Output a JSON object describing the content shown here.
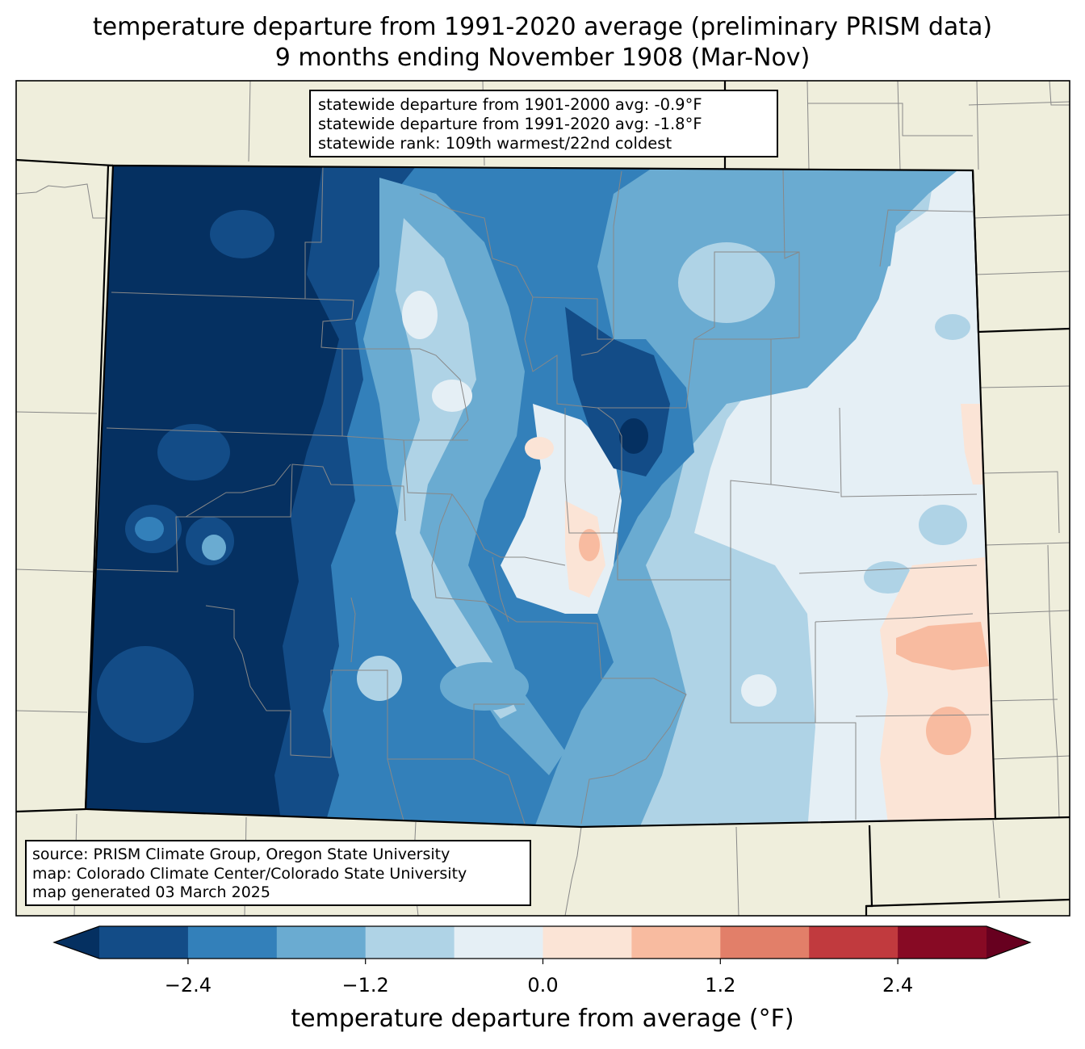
{
  "title": {
    "line1": "temperature departure from 1991-2020 average (preliminary PRISM data)",
    "line2": "9 months ending November 1908 (Mar-Nov)"
  },
  "stats_box": {
    "line1": "statewide departure from 1901-2000 avg: -0.9°F",
    "line2": "statewide departure from 1991-2020 avg: -1.8°F",
    "line3": "statewide rank: 109th warmest/22nd coldest"
  },
  "source_box": {
    "line1": "source: PRISM Climate Group, Oregon State University",
    "line2": "map: Colorado Climate Center/Colorado State University",
    "line3": "map generated 03 March 2025"
  },
  "colorbar": {
    "label": "temperature departure from average (°F)",
    "ticks": [
      "−2.4",
      "−1.2",
      "0.0",
      "1.2",
      "2.4"
    ],
    "tick_values": [
      -2.4,
      -1.2,
      0.0,
      1.2,
      2.4
    ],
    "range": [
      -3.0,
      3.0
    ],
    "extend": "both",
    "colors": [
      "#053061",
      "#134c87",
      "#3380ba",
      "#6aabd1",
      "#afd3e6",
      "#e5eff5",
      "#fbe4d6",
      "#f8bba0",
      "#e27f69",
      "#c13a3e",
      "#870a24",
      "#67001f"
    ]
  },
  "colors": {
    "land_outside": "#efeedc",
    "state_border": "#000000",
    "county_border": "#888888"
  }
}
